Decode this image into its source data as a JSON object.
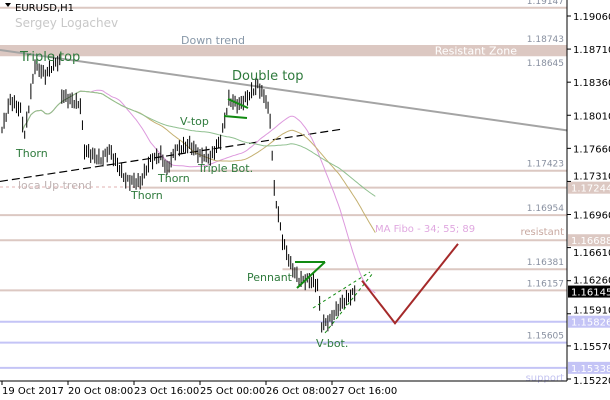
{
  "header": {
    "symbol": "EURUSD,H1",
    "author": "Sergey Logachev"
  },
  "colors": {
    "resistance": "#dcc8c2",
    "support": "#c4c4f6",
    "down_trend": "#a4a4a4",
    "pattern_text": "#2e7a3c",
    "pattern_lines": "#118a11",
    "forecast": "#a52a2a",
    "ma34": "#dd99dd",
    "ma55": "#c4b070",
    "ma89": "#90c090",
    "price_tag": "#000000"
  },
  "chart_data": {
    "type": "bar",
    "style": "ohlc-bars",
    "symbol": "EURUSD",
    "timeframe": "H1",
    "x_tick_labels": [
      {
        "time": "2017-10-19 00:00",
        "label": "19 Oct 2017"
      },
      {
        "time": "2017-10-20 08:00",
        "label": "20 Oct 08:00"
      },
      {
        "time": "2017-10-23 16:00",
        "label": "23 Oct 16:00"
      },
      {
        "time": "2017-10-25 00:00",
        "label": "25 Oct 00:00"
      },
      {
        "time": "2017-10-26 08:00",
        "label": "26 Oct 08:00"
      },
      {
        "time": "2017-10-27 16:00",
        "label": "27 Oct 16:00"
      }
    ],
    "y_tick_labels": [
      "1.19060",
      "1.18710",
      "1.18360",
      "1.18010",
      "1.17660",
      "1.17310",
      "1.16960",
      "1.16610",
      "1.16260",
      "1.15910",
      "1.15570",
      "1.15220"
    ],
    "ylim": [
      1.1506,
      1.1923
    ],
    "price_path": [
      [
        "2017-10-19 00:00",
        1.17854
      ],
      [
        "2017-10-19 04:00",
        1.18171
      ],
      [
        "2017-10-19 09:00",
        1.18066
      ],
      [
        "2017-10-19 11:00",
        1.178
      ],
      [
        "2017-10-19 16:00",
        1.18542
      ],
      [
        "2017-10-19 21:00",
        1.18436
      ],
      [
        "2017-10-20 02:00",
        1.18573
      ],
      [
        "2017-10-20 04:00",
        1.18573
      ],
      [
        "2017-10-20 05:00",
        1.18224
      ],
      [
        "2017-10-20 09:00",
        1.18171
      ],
      [
        "2017-10-20 14:00",
        1.18119
      ],
      [
        "2017-10-20 16:00",
        1.17642
      ],
      [
        "2017-10-23 00:00",
        1.17537
      ],
      [
        "2017-10-23 04:00",
        1.17642
      ],
      [
        "2017-10-23 08:00",
        1.17484
      ],
      [
        "2017-10-23 12:00",
        1.17325
      ],
      [
        "2017-10-23 19:00",
        1.173
      ],
      [
        "2017-10-24 00:00",
        1.17537
      ],
      [
        "2017-10-24 05:00",
        1.1759
      ],
      [
        "2017-10-24 08:00",
        1.17431
      ],
      [
        "2017-10-24 12:00",
        1.17642
      ],
      [
        "2017-10-24 19:00",
        1.177
      ],
      [
        "2017-10-25 00:00",
        1.1759
      ],
      [
        "2017-10-25 05:00",
        1.1756
      ],
      [
        "2017-10-25 10:00",
        1.17748
      ],
      [
        "2017-10-25 14:00",
        1.18171
      ],
      [
        "2017-10-25 19:00",
        1.18119
      ],
      [
        "2017-10-26 00:00",
        1.18224
      ],
      [
        "2017-10-26 04:00",
        1.1833
      ],
      [
        "2017-10-26 08:00",
        1.18171
      ],
      [
        "2017-10-26 10:00",
        1.1796
      ],
      [
        "2017-10-26 12:00",
        1.17219
      ],
      [
        "2017-10-26 16:00",
        1.1669
      ],
      [
        "2017-10-26 20:00",
        1.16426
      ],
      [
        "2017-10-27 00:00",
        1.16267
      ],
      [
        "2017-10-27 05:00",
        1.16267
      ],
      [
        "2017-10-27 09:00",
        1.16214
      ],
      [
        "2017-10-27 11:00",
        1.15791
      ],
      [
        "2017-10-27 15:00",
        1.15844
      ],
      [
        "2017-10-27 20:00",
        1.16003
      ],
      [
        "2017-10-30 03:00",
        1.1614
      ]
    ],
    "current_price": "1.16145",
    "moving_averages": {
      "label": "MA Fibo - 34; 55; 89",
      "periods": [
        34,
        55,
        89
      ]
    },
    "levels": [
      {
        "price": "1.19147",
        "kind": "resistance",
        "label": "1.19147"
      },
      {
        "price": "1.18743",
        "kind": "resistance",
        "label": "1.18743"
      },
      {
        "price": "1.18645",
        "kind": "resistance",
        "label": "1.18645"
      },
      {
        "price": "1.17423",
        "kind": "resistance",
        "label": "1.17423",
        "from": "2017-10-24 08:00"
      },
      {
        "price": "1.17244",
        "kind": "resistance",
        "axis_tag": "1.17244",
        "from": "2017-10-23 19:00"
      },
      {
        "price": "1.16954",
        "kind": "resistance",
        "label": "1.16954"
      },
      {
        "price": "1.16688",
        "kind": "resistance",
        "axis_tag": "1.16688"
      },
      {
        "price": "1.16381",
        "kind": "resistance",
        "label": "1.16381",
        "from": "2017-10-26 16:00"
      },
      {
        "price": "1.16157",
        "kind": "resistance",
        "label": "1.16157"
      },
      {
        "price": "1.15826",
        "kind": "support",
        "axis_tag": "1.15826"
      },
      {
        "price": "1.15605",
        "kind": "support",
        "label": "1.15605"
      },
      {
        "price": "1.15338",
        "kind": "support",
        "axis_tag": "1.15338"
      }
    ],
    "zone_labels": {
      "resistant_zone": "Resistant Zone",
      "resistant": "resistant",
      "support": "support"
    },
    "trendlines": {
      "down_trend": {
        "label": "Down trend",
        "from": [
          "2017-10-19 00:00",
          1.187
        ],
        "to": [
          "2017-10-31 21:00",
          1.1785
        ]
      },
      "local_up_trend": {
        "label": "loca Up trend",
        "from": [
          "2017-10-19 00:00",
          1.1731
        ],
        "to": [
          "2017-10-27 20:00",
          1.1786
        ]
      }
    },
    "forecast_path": [
      [
        "2017-10-27 23:00",
        1.1626
      ],
      [
        "2017-10-30 15:00",
        1.1581
      ],
      [
        "2017-10-31 22:00",
        1.1665
      ]
    ],
    "annotations": [
      {
        "text": "Triple top",
        "time": "2017-10-19 09:00",
        "price": 1.1865
      },
      {
        "text": "Thorn",
        "time": "2017-10-19 07:00",
        "price": 1.1761
      },
      {
        "text": "Thorn",
        "time": "2017-10-23 16:00",
        "price": 1.1718
      },
      {
        "text": "Thorn",
        "time": "2017-10-24 05:00",
        "price": 1.1737
      },
      {
        "text": "V-top",
        "time": "2017-10-24 16:00",
        "price": 1.1802
      },
      {
        "text": "Triple Bot.",
        "time": "2017-10-25 00:00",
        "price": 1.1747
      },
      {
        "text": "Double top",
        "time": "2017-10-26 03:00",
        "price": 1.1844
      },
      {
        "text": "Pennant",
        "time": "2017-10-26 21:00",
        "price": 1.1633
      },
      {
        "text": "V-bot.",
        "time": "2017-10-27 11:00",
        "price": 1.1559
      }
    ]
  }
}
